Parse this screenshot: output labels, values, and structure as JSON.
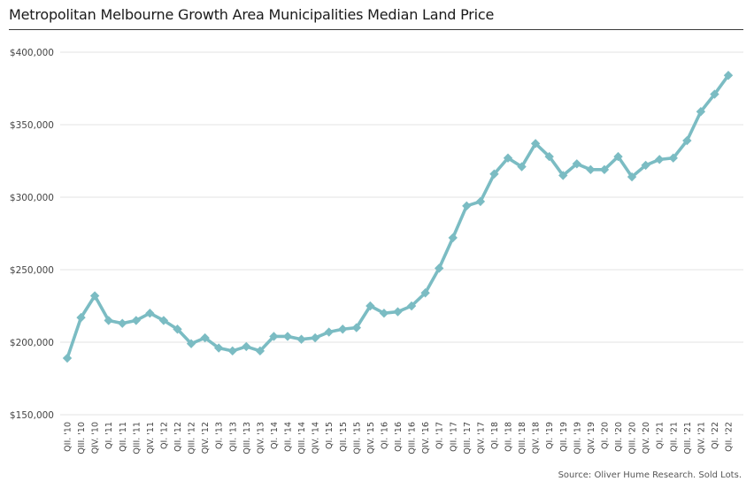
{
  "chart_data": {
    "type": "line",
    "title": "Metropolitan Melbourne Growth Area Municipalities Median Land Price",
    "source": "Source: Oliver Hume Research. Sold Lots.",
    "xlabel": "",
    "ylabel": "",
    "ylim": [
      150000,
      400000
    ],
    "yticks": [
      150000,
      200000,
      250000,
      300000,
      350000,
      400000
    ],
    "ytick_labels": [
      "$150,000",
      "$200,000",
      "$250,000",
      "$300,000",
      "$350,000",
      "$400,000"
    ],
    "grid": true,
    "legend": "none",
    "line_color": "#7bbcc3",
    "grid_color": "#e3e3e3",
    "categories": [
      "QII. '10",
      "QIII. '10",
      "QIV. '10",
      "QI. '11",
      "QII. '11",
      "QIII. '11",
      "QIV. '11",
      "QI. '12",
      "QII. '12",
      "QIII. '12",
      "QIV. '12",
      "QI. '13",
      "QII. '13",
      "QIII. '13",
      "QIV. '13",
      "QI. '14",
      "QII. '14",
      "QIII. '14",
      "QIV. '14",
      "QI. '15",
      "QII. '15",
      "QIII. '15",
      "QIV. '15",
      "QI. '16",
      "QII. '16",
      "QIII. '16",
      "QIV. '16",
      "QI. '17",
      "QII. '17",
      "QIII. '17",
      "QIV. '17",
      "QI. '18",
      "QII. '18",
      "QIII. '18",
      "QIV. '18",
      "QI. '19",
      "QII. '19",
      "QIII. '19",
      "QIV. '19",
      "QI. '20",
      "QII. '20",
      "QIII. '20",
      "QIV. '20",
      "QI. '21",
      "QII. '21",
      "QIII. '21",
      "QIV. '21",
      "QI. '22",
      "QII. '22"
    ],
    "values": [
      189000,
      217000,
      232000,
      215000,
      213000,
      215000,
      220000,
      215000,
      209000,
      199000,
      203000,
      196000,
      194000,
      197000,
      194000,
      204000,
      204000,
      202000,
      203000,
      207000,
      209000,
      210000,
      225000,
      220000,
      221000,
      225000,
      234000,
      251000,
      272000,
      294000,
      297000,
      316000,
      327000,
      321000,
      337000,
      328000,
      315000,
      323000,
      319000,
      319000,
      328000,
      314000,
      322000,
      326000,
      327000,
      339000,
      359000,
      371000,
      384000
    ]
  }
}
